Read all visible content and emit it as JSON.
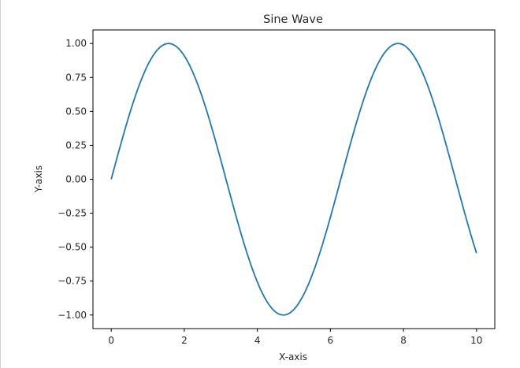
{
  "chart_data": {
    "type": "line",
    "title": "Sine Wave",
    "xlabel": "X-axis",
    "ylabel": "Y-axis",
    "xlim": [
      -0.5,
      10.5
    ],
    "ylim": [
      -1.1,
      1.1
    ],
    "x_ticks": [
      0,
      2,
      4,
      6,
      8,
      10
    ],
    "x_tick_labels": [
      "0",
      "2",
      "4",
      "6",
      "8",
      "10"
    ],
    "y_ticks": [
      1.0,
      0.75,
      0.5,
      0.25,
      0.0,
      -0.25,
      -0.5,
      -0.75,
      -1.0
    ],
    "y_tick_labels": [
      "1.00",
      "0.75",
      "0.50",
      "0.25",
      "0.00",
      "−0.25",
      "−0.50",
      "−0.75",
      "−1.00"
    ],
    "grid": false,
    "legend": "none",
    "line_color": "#1f77b4",
    "series": [
      {
        "x": [
          0,
          0.5,
          1,
          1.5,
          1.5708,
          2,
          2.5,
          3,
          3.5,
          4,
          4.5,
          4.7124,
          5,
          5.5,
          6,
          6.5,
          7,
          7.5,
          7.854,
          8,
          8.5,
          9,
          9.5,
          10
        ],
        "values": [
          0,
          0.479,
          0.841,
          0.997,
          1.0,
          0.909,
          0.598,
          0.141,
          -0.351,
          -0.757,
          -0.978,
          -1.0,
          -0.959,
          -0.706,
          -0.279,
          0.215,
          0.657,
          0.938,
          1.0,
          0.989,
          0.798,
          0.412,
          -0.075,
          -0.544
        ]
      }
    ]
  }
}
